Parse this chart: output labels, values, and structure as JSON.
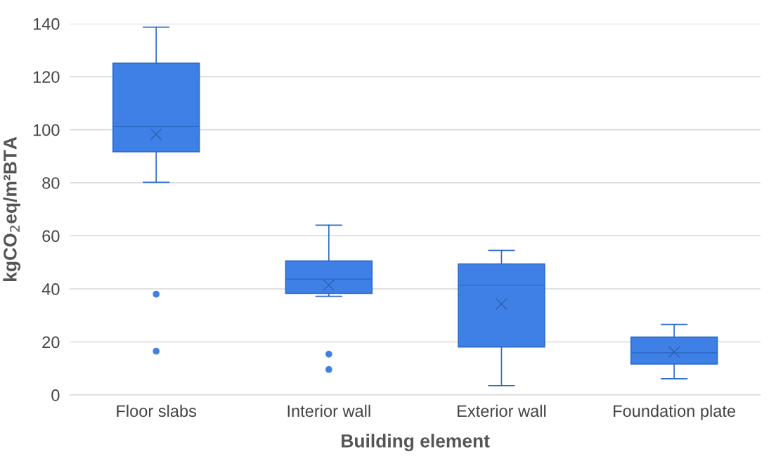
{
  "chart_data": {
    "type": "box",
    "xlabel": "Building element",
    "ylabel": "kgCO$_{2}$eq/m²BTA",
    "categories": [
      "Floor slabs",
      "Interior wall",
      "Exterior wall",
      "Foundation plate"
    ],
    "color": "#3f80e6",
    "boxes": [
      {
        "low": 80.2,
        "q1": 91.7,
        "median": 101.2,
        "q3": 125.1,
        "high": 138.7,
        "mean": 98.3,
        "outliers": [
          38.0,
          16.5
        ]
      },
      {
        "low": 37.2,
        "q1": 38.3,
        "median": 43.6,
        "q3": 50.5,
        "high": 64.0,
        "mean": 41.4,
        "outliers": [
          15.4,
          9.6
        ]
      },
      {
        "low": 3.5,
        "q1": 18.1,
        "median": 41.4,
        "q3": 49.4,
        "high": 54.5,
        "mean": 34.3
      },
      {
        "low": 6.1,
        "q1": 11.7,
        "median": 15.9,
        "q3": 21.8,
        "high": 26.6,
        "mean": 16.2
      }
    ],
    "ylim": [
      0,
      140
    ],
    "yticks": [
      0,
      20,
      40,
      60,
      80,
      100,
      120,
      140
    ],
    "grid": "y",
    "marker": "cross"
  }
}
